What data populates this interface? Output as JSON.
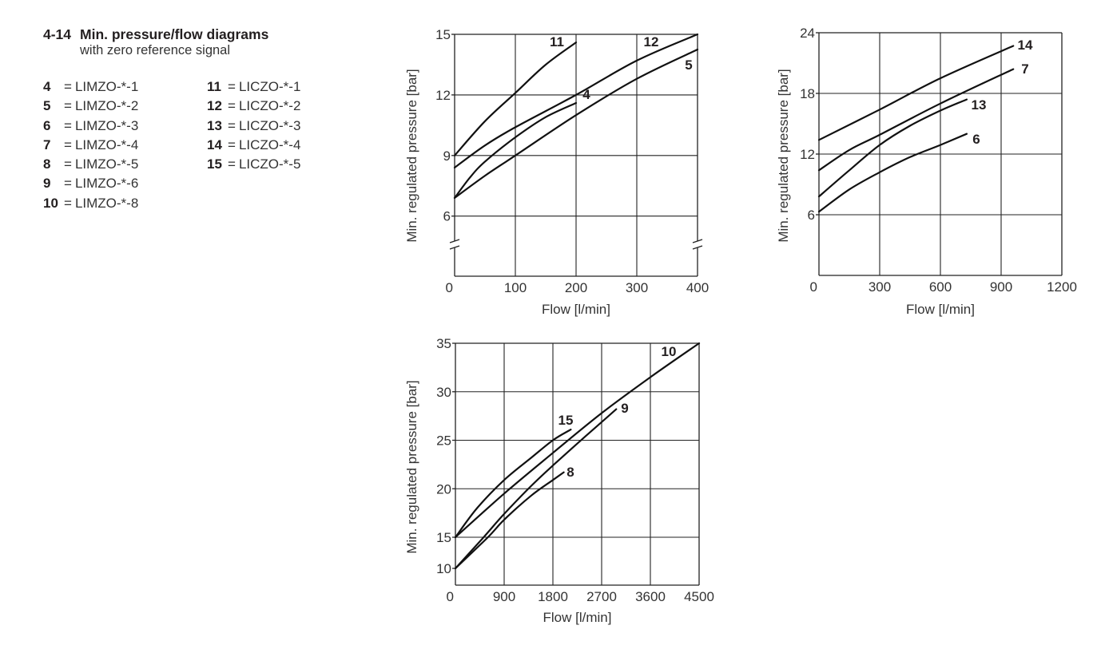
{
  "header": {
    "number": "4-14",
    "title": "Min. pressure/flow diagrams",
    "subtitle": "with zero reference signal"
  },
  "legend": {
    "left": [
      {
        "key": "4",
        "label": "LIMZO-*-1"
      },
      {
        "key": "5",
        "label": "LIMZO-*-2"
      },
      {
        "key": "6",
        "label": "LIMZO-*-3"
      },
      {
        "key": "7",
        "label": "LIMZO-*-4"
      },
      {
        "key": "8",
        "label": "LIMZO-*-5"
      },
      {
        "key": "9",
        "label": "LIMZO-*-6"
      },
      {
        "key": "10",
        "label": "LIMZO-*-8"
      }
    ],
    "right": [
      {
        "key": "11",
        "label": "LICZO-*-1"
      },
      {
        "key": "12",
        "label": "LICZO-*-2"
      },
      {
        "key": "13",
        "label": "LICZO-*-3"
      },
      {
        "key": "14",
        "label": "LICZO-*-4"
      },
      {
        "key": "15",
        "label": "LICZO-*-5"
      }
    ]
  },
  "chart_data": [
    {
      "type": "line",
      "title": "",
      "xlabel": "Flow [l/min]",
      "ylabel": "Min. regulated pressure [bar]",
      "xlim": [
        0,
        400
      ],
      "ylim": [
        3,
        15
      ],
      "y_axis_break": true,
      "grid": true,
      "x_ticks": [
        "0",
        "100",
        "200",
        "300",
        "400"
      ],
      "y_ticks": [
        "6",
        "9",
        "12",
        "15"
      ],
      "series": [
        {
          "name": "11",
          "x": [
            0,
            50,
            100,
            150,
            200
          ],
          "y": [
            9.0,
            10.7,
            12.1,
            13.5,
            14.6
          ]
        },
        {
          "name": "12",
          "x": [
            0,
            50,
            100,
            200,
            300,
            400
          ],
          "y": [
            8.4,
            9.5,
            10.4,
            12.0,
            13.7,
            15.0
          ]
        },
        {
          "name": "4",
          "x": [
            0,
            25,
            50,
            100,
            150,
            200
          ],
          "y": [
            6.9,
            7.9,
            8.7,
            9.9,
            10.9,
            11.6
          ]
        },
        {
          "name": "5",
          "x": [
            0,
            50,
            100,
            200,
            300,
            400
          ],
          "y": [
            6.9,
            8.0,
            9.0,
            11.0,
            12.8,
            14.25
          ]
        }
      ]
    },
    {
      "type": "line",
      "title": "",
      "xlabel": "Flow [l/min]",
      "ylabel": "Min. regulated pressure [bar]",
      "xlim": [
        0,
        1200
      ],
      "ylim": [
        0,
        24
      ],
      "grid": true,
      "x_ticks": [
        "0",
        "300",
        "600",
        "900",
        "1200"
      ],
      "y_ticks": [
        "6",
        "12",
        "18",
        "24"
      ],
      "series": [
        {
          "name": "14",
          "x": [
            0,
            300,
            600,
            960
          ],
          "y": [
            13.4,
            16.4,
            19.5,
            22.7
          ]
        },
        {
          "name": "7",
          "x": [
            0,
            150,
            300,
            600,
            960
          ],
          "y": [
            10.4,
            12.4,
            13.9,
            17.0,
            20.4
          ]
        },
        {
          "name": "13",
          "x": [
            0,
            150,
            300,
            450,
            600,
            730
          ],
          "y": [
            7.8,
            10.4,
            12.9,
            14.8,
            16.3,
            17.4
          ]
        },
        {
          "name": "6",
          "x": [
            0,
            150,
            300,
            450,
            600,
            730
          ],
          "y": [
            6.3,
            8.5,
            10.2,
            11.7,
            12.9,
            14.0
          ]
        }
      ]
    },
    {
      "type": "line",
      "title": "",
      "xlabel": "Flow [l/min]",
      "ylabel": "Min. regulated pressure [bar]",
      "xlim": [
        0,
        4500
      ],
      "ylim": [
        10,
        35
      ],
      "grid": true,
      "x_ticks": [
        "0",
        "900",
        "1800",
        "2700",
        "3600",
        "4500"
      ],
      "y_ticks": [
        "10",
        "15",
        "20",
        "25",
        "30",
        "35"
      ],
      "series": [
        {
          "name": "15",
          "x": [
            0,
            400,
            900,
            1400,
            1800,
            2130
          ],
          "y": [
            15.0,
            18.0,
            20.9,
            23.2,
            25.0,
            26.1
          ]
        },
        {
          "name": "10",
          "x": [
            0,
            900,
            1800,
            2700,
            3600,
            4500
          ],
          "y": [
            15.0,
            19.5,
            23.7,
            27.8,
            31.5,
            35.0
          ]
        },
        {
          "name": "9",
          "x": [
            0,
            500,
            900,
            1400,
            1800,
            2400,
            2970
          ],
          "y": [
            10.0,
            14.8,
            17.4,
            20.3,
            22.4,
            25.4,
            28.2
          ]
        },
        {
          "name": "8",
          "x": [
            0,
            600,
            900,
            1400,
            1800,
            2000
          ],
          "y": [
            10.0,
            15.0,
            16.8,
            19.3,
            20.9,
            21.7
          ]
        }
      ]
    }
  ]
}
